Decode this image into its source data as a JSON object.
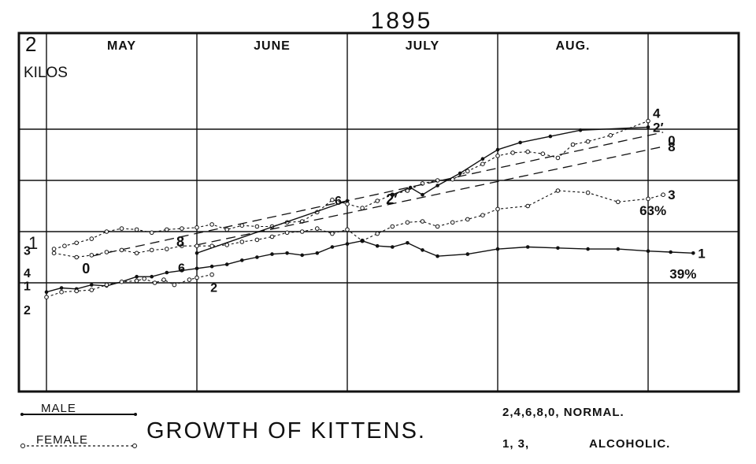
{
  "chart_data": {
    "type": "line",
    "title": "1895",
    "caption": "GROWTH OF KITTENS.",
    "y_unit_top_value": "2",
    "y_unit_label": "KILOS",
    "y_mid_label": "1",
    "ylim": [
      0.2,
      2.15
    ],
    "xlim": [
      0,
      4.5
    ],
    "months": [
      "MAY",
      "JUNE",
      "JULY",
      "AUG."
    ],
    "grid": true,
    "legend": {
      "male": "MALE",
      "female": "FEMALE",
      "normal": "2,4,6,8,0, NORMAL.",
      "alcoholic_ids": "1, 3,",
      "alcoholic": "ALCOHOLIC."
    },
    "series": [
      {
        "name": "4",
        "style": "female",
        "group": "normal",
        "points": [
          [
            0.05,
            0.83
          ],
          [
            0.12,
            0.86
          ],
          [
            0.2,
            0.89
          ],
          [
            0.3,
            0.93
          ],
          [
            0.4,
            1.0
          ],
          [
            0.5,
            1.03
          ],
          [
            0.6,
            1.02
          ],
          [
            0.7,
            0.99
          ],
          [
            0.8,
            1.02
          ],
          [
            0.9,
            1.03
          ],
          [
            1.0,
            1.04
          ],
          [
            1.1,
            1.07
          ],
          [
            1.2,
            1.02
          ],
          [
            1.3,
            1.06
          ],
          [
            1.4,
            1.05
          ],
          [
            1.5,
            1.05
          ],
          [
            1.6,
            1.09
          ],
          [
            1.7,
            1.1
          ],
          [
            1.8,
            1.19
          ],
          [
            1.9,
            1.31
          ],
          [
            2.0,
            1.27
          ],
          [
            2.1,
            1.23
          ],
          [
            2.2,
            1.3
          ],
          [
            2.3,
            1.36
          ],
          [
            2.4,
            1.4
          ],
          [
            2.5,
            1.47
          ],
          [
            2.6,
            1.5
          ],
          [
            2.7,
            1.51
          ],
          [
            2.8,
            1.59
          ],
          [
            2.9,
            1.66
          ],
          [
            3.0,
            1.74
          ],
          [
            3.1,
            1.77
          ],
          [
            3.2,
            1.78
          ],
          [
            3.3,
            1.76
          ],
          [
            3.4,
            1.72
          ],
          [
            3.5,
            1.85
          ],
          [
            3.6,
            1.88
          ],
          [
            3.75,
            1.94
          ],
          [
            4.0,
            2.08
          ]
        ]
      },
      {
        "name": "2′",
        "style": "male",
        "group": "normal",
        "points": [
          [
            2.3,
            1.36
          ],
          [
            2.42,
            1.43
          ],
          [
            2.5,
            1.36
          ],
          [
            2.6,
            1.45
          ],
          [
            2.75,
            1.57
          ],
          [
            2.9,
            1.71
          ],
          [
            3.0,
            1.8
          ],
          [
            3.15,
            1.87
          ],
          [
            3.35,
            1.93
          ],
          [
            3.55,
            1.99
          ],
          [
            4.0,
            2.02
          ]
        ]
      },
      {
        "name": "0",
        "style": "trend",
        "group": "normal",
        "points": [
          [
            0.3,
            0.76
          ],
          [
            4.1,
            1.97
          ]
        ]
      },
      {
        "name": "8",
        "style": "trend",
        "group": "normal",
        "points": [
          [
            1.0,
            0.87
          ],
          [
            4.1,
            1.83
          ]
        ]
      },
      {
        "name": "6",
        "style": "male",
        "group": "normal",
        "points": [
          [
            1.0,
            0.79
          ],
          [
            2.0,
            1.3
          ]
        ]
      },
      {
        "name": "3",
        "label": "63%",
        "style": "female",
        "group": "alcoholic",
        "points": [
          [
            0.05,
            0.79
          ],
          [
            0.2,
            0.75
          ],
          [
            0.3,
            0.77
          ],
          [
            0.4,
            0.8
          ],
          [
            0.5,
            0.82
          ],
          [
            0.6,
            0.79
          ],
          [
            0.7,
            0.82
          ],
          [
            0.8,
            0.83
          ],
          [
            0.9,
            0.86
          ],
          [
            1.0,
            0.86
          ],
          [
            1.1,
            0.86
          ],
          [
            1.2,
            0.87
          ],
          [
            1.3,
            0.9
          ],
          [
            1.4,
            0.92
          ],
          [
            1.5,
            0.95
          ],
          [
            1.6,
            0.99
          ],
          [
            1.7,
            1.0
          ],
          [
            1.8,
            1.03
          ],
          [
            1.9,
            0.98
          ],
          [
            2.0,
            1.02
          ],
          [
            2.1,
            0.91
          ],
          [
            2.2,
            0.98
          ],
          [
            2.3,
            1.05
          ],
          [
            2.4,
            1.09
          ],
          [
            2.5,
            1.1
          ],
          [
            2.6,
            1.05
          ],
          [
            2.7,
            1.09
          ],
          [
            2.8,
            1.12
          ],
          [
            2.9,
            1.16
          ],
          [
            3.0,
            1.22
          ],
          [
            3.2,
            1.25
          ],
          [
            3.4,
            1.4
          ],
          [
            3.6,
            1.38
          ],
          [
            3.8,
            1.29
          ],
          [
            4.0,
            1.32
          ],
          [
            4.1,
            1.36
          ]
        ]
      },
      {
        "name": "1",
        "label": "39%",
        "style": "male",
        "group": "alcoholic",
        "points": [
          [
            0.0,
            0.41
          ],
          [
            0.1,
            0.45
          ],
          [
            0.2,
            0.44
          ],
          [
            0.3,
            0.48
          ],
          [
            0.4,
            0.47
          ],
          [
            0.5,
            0.51
          ],
          [
            0.6,
            0.56
          ],
          [
            0.7,
            0.56
          ],
          [
            0.8,
            0.6
          ],
          [
            0.9,
            0.62
          ],
          [
            1.0,
            0.64
          ],
          [
            1.1,
            0.66
          ],
          [
            1.2,
            0.68
          ],
          [
            1.3,
            0.72
          ],
          [
            1.4,
            0.75
          ],
          [
            1.5,
            0.78
          ],
          [
            1.6,
            0.79
          ],
          [
            1.7,
            0.77
          ],
          [
            1.8,
            0.79
          ],
          [
            1.9,
            0.85
          ],
          [
            2.0,
            0.88
          ],
          [
            2.1,
            0.91
          ],
          [
            2.2,
            0.86
          ],
          [
            2.3,
            0.85
          ],
          [
            2.4,
            0.89
          ],
          [
            2.5,
            0.82
          ],
          [
            2.6,
            0.76
          ],
          [
            2.8,
            0.78
          ],
          [
            3.0,
            0.83
          ],
          [
            3.2,
            0.85
          ],
          [
            3.4,
            0.84
          ],
          [
            3.6,
            0.83
          ],
          [
            3.8,
            0.83
          ],
          [
            4.0,
            0.81
          ],
          [
            4.15,
            0.8
          ],
          [
            4.3,
            0.79
          ]
        ]
      },
      {
        "name": "2",
        "style": "female",
        "group": "normal",
        "points": [
          [
            0.0,
            0.36
          ],
          [
            0.1,
            0.41
          ],
          [
            0.2,
            0.42
          ],
          [
            0.3,
            0.43
          ],
          [
            0.4,
            0.48
          ],
          [
            0.5,
            0.51
          ],
          [
            0.6,
            0.52
          ],
          [
            0.65,
            0.54
          ],
          [
            0.72,
            0.5
          ],
          [
            0.78,
            0.53
          ],
          [
            0.85,
            0.48
          ],
          [
            0.95,
            0.53
          ],
          [
            1.0,
            0.55
          ],
          [
            1.1,
            0.58
          ]
        ]
      }
    ]
  }
}
